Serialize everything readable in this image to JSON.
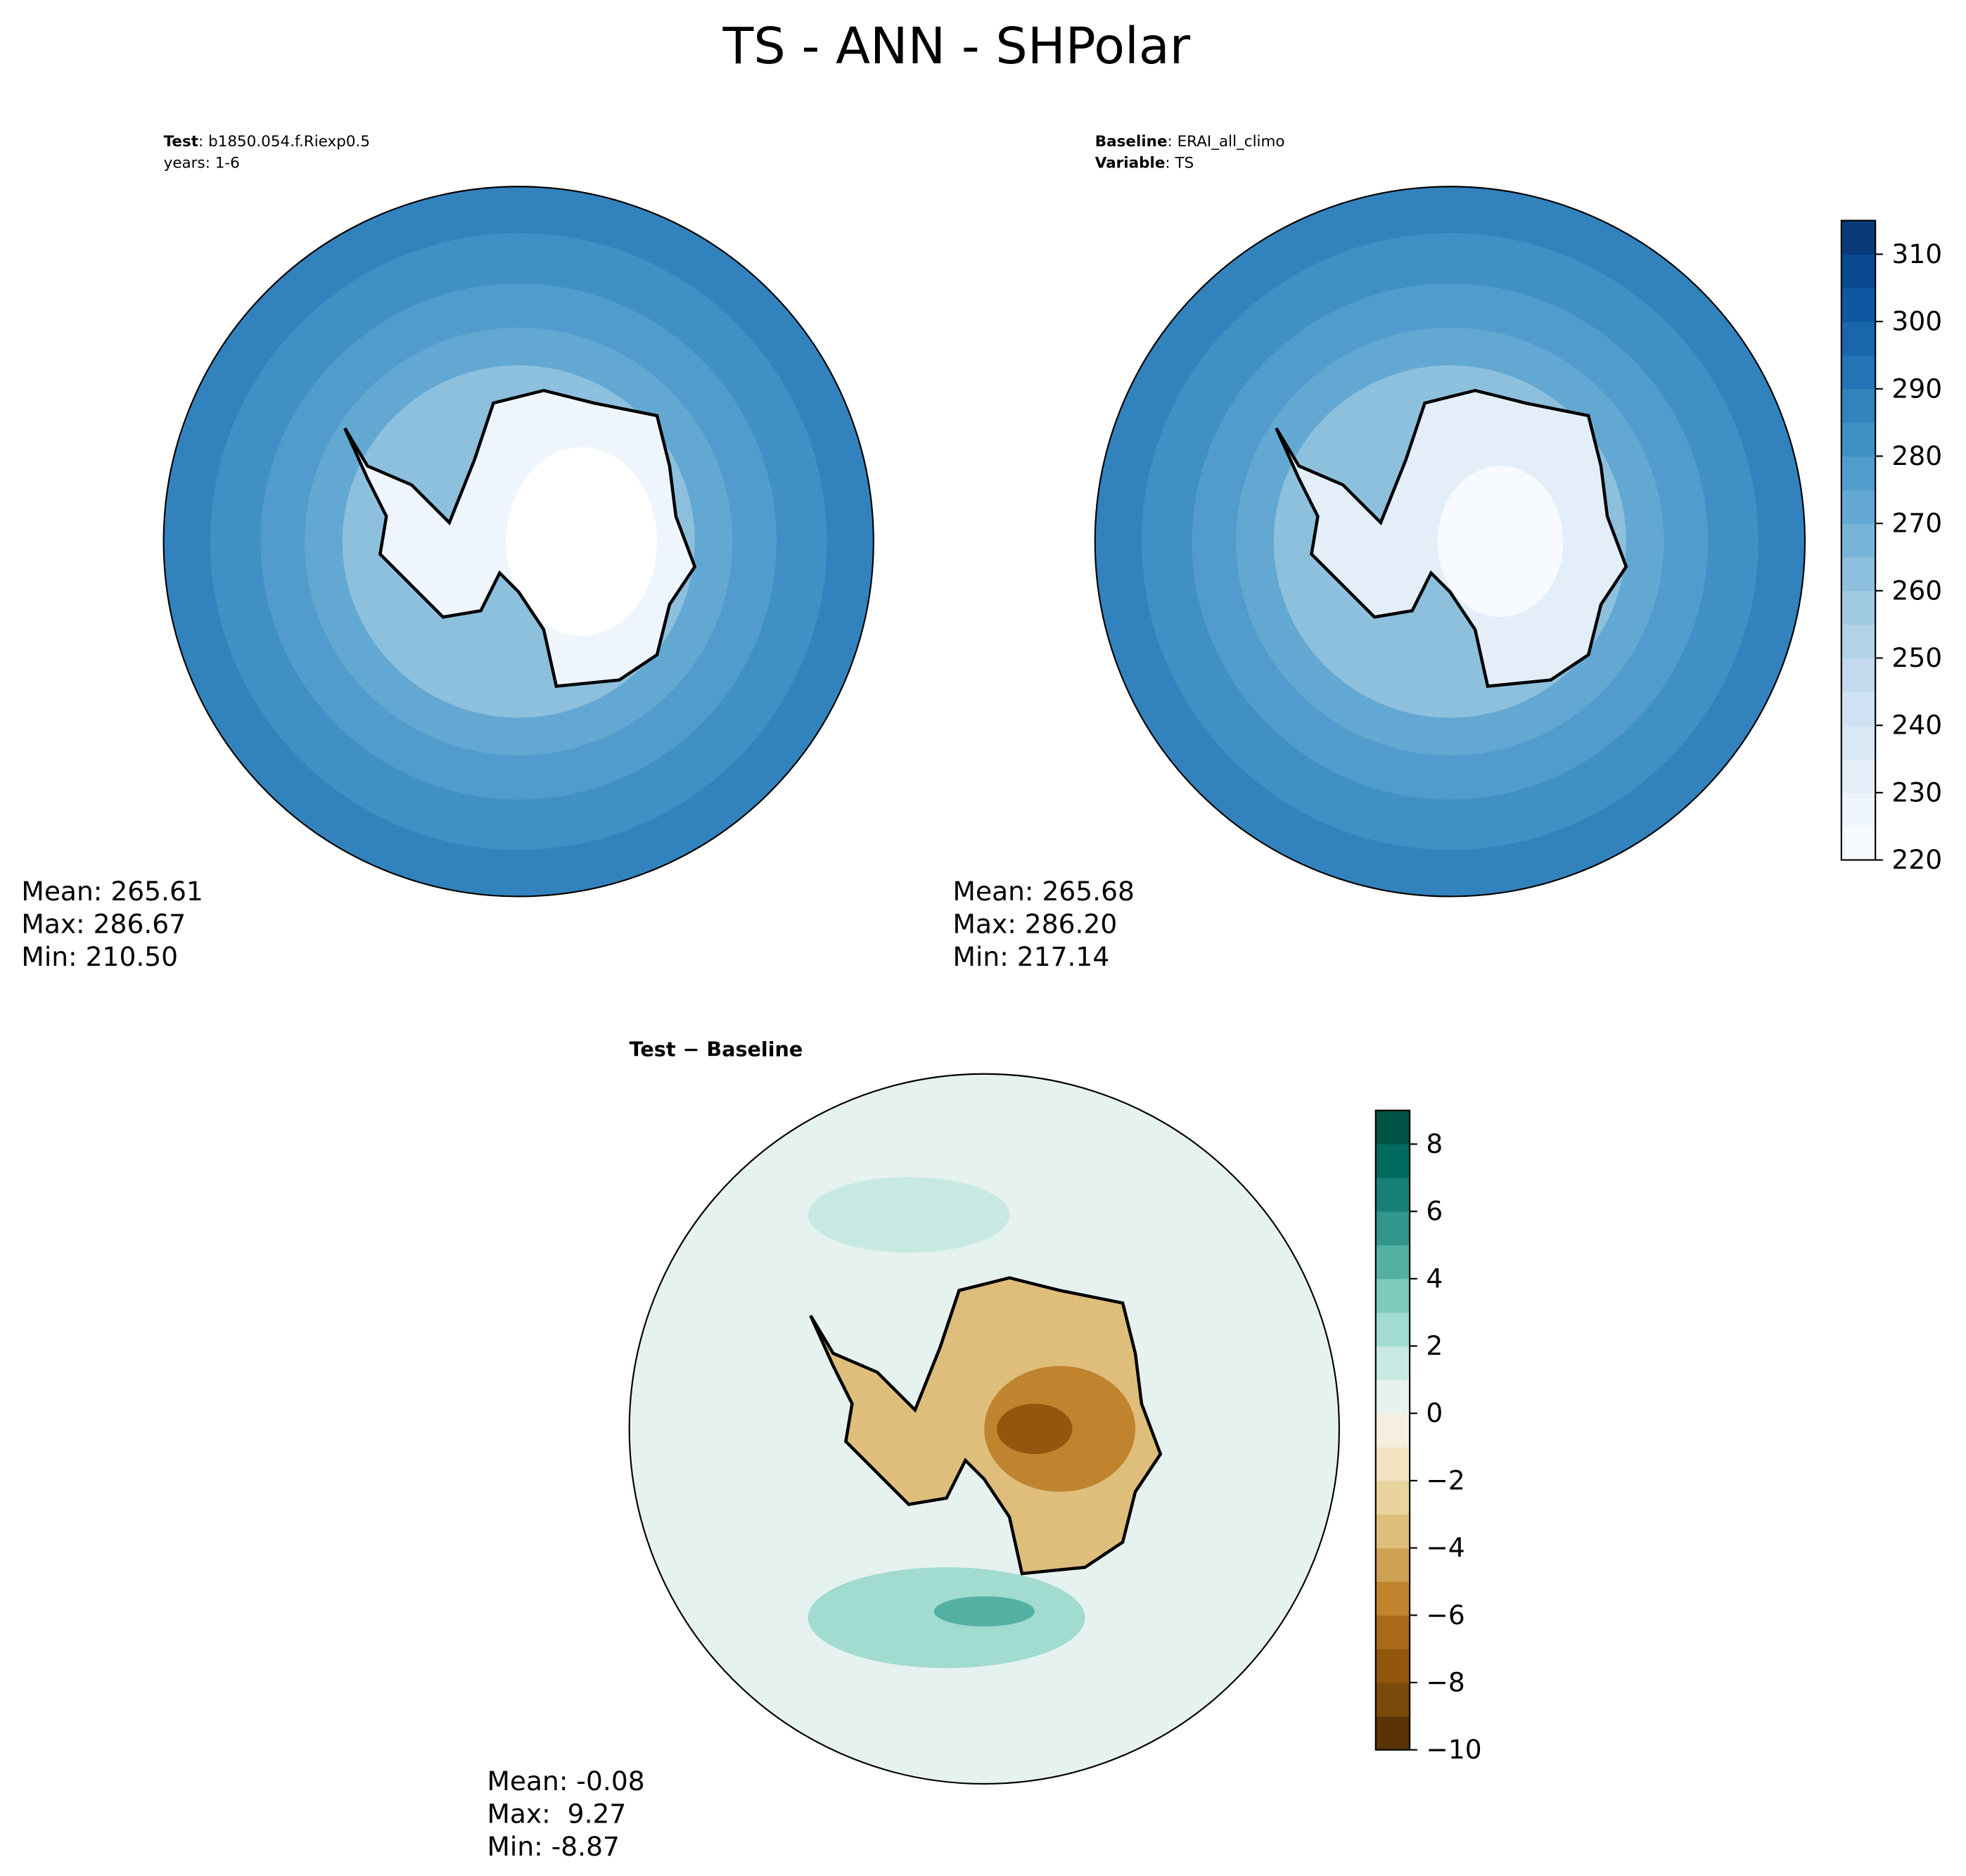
{
  "title": "TS - ANN - SHPolar",
  "panels": [
    {
      "key": "Test",
      "sep": ":",
      "value": "b1850.054.f.Riexp0.5",
      "line2": "years: 1-6",
      "stats": [
        "Mean: 265.61",
        "Max: 286.67",
        "Min: 210.50"
      ]
    },
    {
      "key": "Baseline",
      "sep": ":",
      "value": "ERAI_all_climo",
      "key2": "Variable",
      "sep2": ":",
      "value2": "TS",
      "stats": [
        "Mean: 265.68",
        "Max: 286.20",
        "Min: 217.14"
      ]
    },
    {
      "key": "Test − Baseline",
      "stats": [
        "Mean: -0.08",
        "Max:  9.27",
        "Min: -8.87"
      ]
    }
  ],
  "colorbars": [
    {
      "lim": [
        220,
        315
      ],
      "levels": [
        220,
        225,
        230,
        235,
        240,
        245,
        250,
        255,
        260,
        265,
        270,
        275,
        280,
        285,
        290,
        295,
        300,
        305,
        310,
        315
      ],
      "ticks": [
        220,
        230,
        240,
        250,
        260,
        270,
        280,
        290,
        300,
        310
      ],
      "colors": [
        "#f7fbff",
        "#eef5fc",
        "#e3eef9",
        "#d9e8f5",
        "#cfe1f2",
        "#c2d9ee",
        "#b2d2e8",
        "#a0cbe2",
        "#8cc0dd",
        "#77b4d8",
        "#63a8d3",
        "#519ccc",
        "#4090c5",
        "#3282be",
        "#2474b7",
        "#1966ad",
        "#0e58a2",
        "#084990",
        "#083a7a"
      ]
    },
    {
      "lim": [
        -10,
        9
      ],
      "levels": [
        -10,
        -9,
        -8,
        -7,
        -6,
        -5,
        -4,
        -3,
        -2,
        -1,
        0,
        1,
        2,
        3,
        4,
        5,
        6,
        7,
        8,
        9
      ],
      "ticks": [
        {
          "value": -10,
          "label": "−10"
        },
        {
          "value": -8,
          "label": "−8"
        },
        {
          "value": -6,
          "label": "−6"
        },
        {
          "value": -4,
          "label": "−4"
        },
        {
          "value": -2,
          "label": "−2"
        },
        0,
        2,
        4,
        6,
        8
      ],
      "colors": [
        "#5a3406",
        "#7a4a0a",
        "#92570d",
        "#ab6a1c",
        "#c0842f",
        "#cfa155",
        "#dfbe7b",
        "#e9d49e",
        "#f2e4c1",
        "#f5efe0",
        "#e6f2ef",
        "#c7e9e2",
        "#a2dbd0",
        "#7ccbbd",
        "#55b0a4",
        "#33968c",
        "#168076",
        "#016a5e",
        "#015446"
      ]
    }
  ]
}
